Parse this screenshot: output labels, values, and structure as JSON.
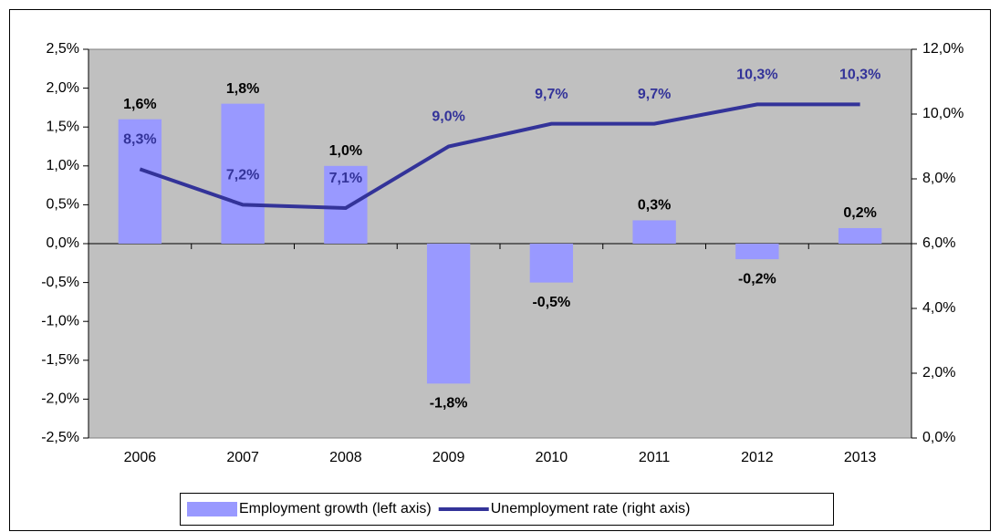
{
  "chart_data": {
    "type": "bar",
    "categories": [
      "2006",
      "2007",
      "2008",
      "2009",
      "2010",
      "2011",
      "2012",
      "2013"
    ],
    "series": [
      {
        "name": "Employment growth (left axis)",
        "color": "#9999ff",
        "values": [
          1.6,
          1.8,
          1.0,
          -1.8,
          -0.5,
          0.3,
          -0.2,
          0.2
        ],
        "value_labels": [
          "1,6%",
          "1,8%",
          "1,0%",
          "-1,8%",
          "-0,5%",
          "0,3%",
          "-0,2%",
          "0,2%"
        ]
      },
      {
        "name": "Unemployment rate (right axis)",
        "type": "line",
        "axis": "y2",
        "color": "#333399",
        "values": [
          8.3,
          7.2,
          7.1,
          9.0,
          9.7,
          9.7,
          10.3,
          10.3
        ],
        "value_labels": [
          "8,3%",
          "7,2%",
          "7,1%",
          "9,0%",
          "9,7%",
          "9,7%",
          "10,3%",
          "10,3%"
        ]
      }
    ],
    "ylim": [
      -2.5,
      2.5
    ],
    "yticks": [
      {
        "value": -2.5,
        "label": "-2,5%"
      },
      {
        "value": -2.0,
        "label": "-2,0%"
      },
      {
        "value": -1.5,
        "label": "-1,5%"
      },
      {
        "value": -1.0,
        "label": "-1,0%"
      },
      {
        "value": -0.5,
        "label": "-0,5%"
      },
      {
        "value": 0.0,
        "label": "0,0%"
      },
      {
        "value": 0.5,
        "label": "0,5%"
      },
      {
        "value": 1.0,
        "label": "1,0%"
      },
      {
        "value": 1.5,
        "label": "1,5%"
      },
      {
        "value": 2.0,
        "label": "2,0%"
      },
      {
        "value": 2.5,
        "label": "2,5%"
      }
    ],
    "y2lim": [
      0,
      12
    ],
    "y2ticks": [
      {
        "value": 0,
        "label": "0,0%"
      },
      {
        "value": 2,
        "label": "2,0%"
      },
      {
        "value": 4,
        "label": "4,0%"
      },
      {
        "value": 6,
        "label": "6,0%"
      },
      {
        "value": 8,
        "label": "8,0%"
      },
      {
        "value": 10,
        "label": "10,0%"
      },
      {
        "value": 12,
        "label": "12,0%"
      }
    ],
    "grid": false,
    "plot_background": "#c0c0c0",
    "legend": "bottom"
  }
}
